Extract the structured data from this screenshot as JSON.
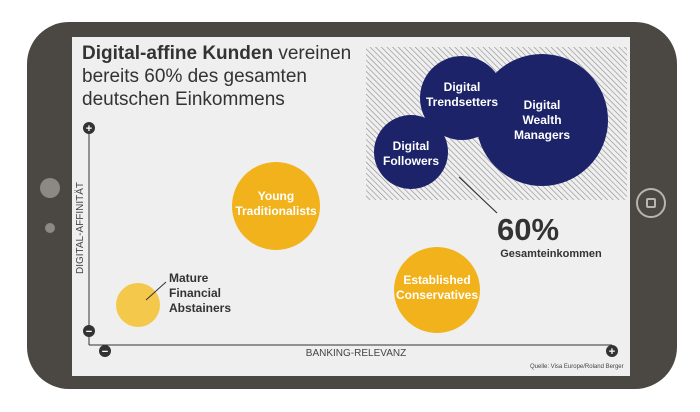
{
  "headline": {
    "bold": "Digital-affine Kunden",
    "rest": "vereinen bereits 60% des gesamten deutschen Einkommens"
  },
  "source": "Quelle: Visa Europe/Roland Berger",
  "callout": {
    "value": "60%",
    "label": "Gesamteinkommen"
  },
  "axis_symbols": {
    "plus": "+",
    "minus": "−"
  },
  "colors": {
    "navy": "#1c2369",
    "yellow": "#f1b21b",
    "pale_yellow": "#f4c84a",
    "frame": "#4b4743",
    "screen": "#efefef"
  },
  "chart_data": {
    "type": "scatter",
    "title": "Digital-affine Kunden vereinen bereits 60% des gesamten deutschen Einkommens",
    "xlabel": "BANKING-RELEVANZ",
    "ylabel": "DIGITAL-AFFINITÄT",
    "xlim": [
      "−",
      "+"
    ],
    "ylim": [
      "−",
      "+"
    ],
    "grid": false,
    "points": [
      {
        "label": [
          "Digital",
          "Trendsetters"
        ]
      },
      {
        "label": [
          "Digital",
          "Wealth",
          "Managers"
        ]
      },
      {
        "label": [
          "Digital",
          "Followers"
        ]
      },
      {
        "label": [
          "Young",
          "Traditionalists"
        ]
      },
      {
        "label": [
          "Established",
          "Conservatives"
        ]
      },
      {
        "label": [
          "Mature",
          "Financial",
          "Abstainers"
        ]
      }
    ],
    "annotation": {
      "value": "60%",
      "text": "Gesamteinkommen"
    }
  }
}
